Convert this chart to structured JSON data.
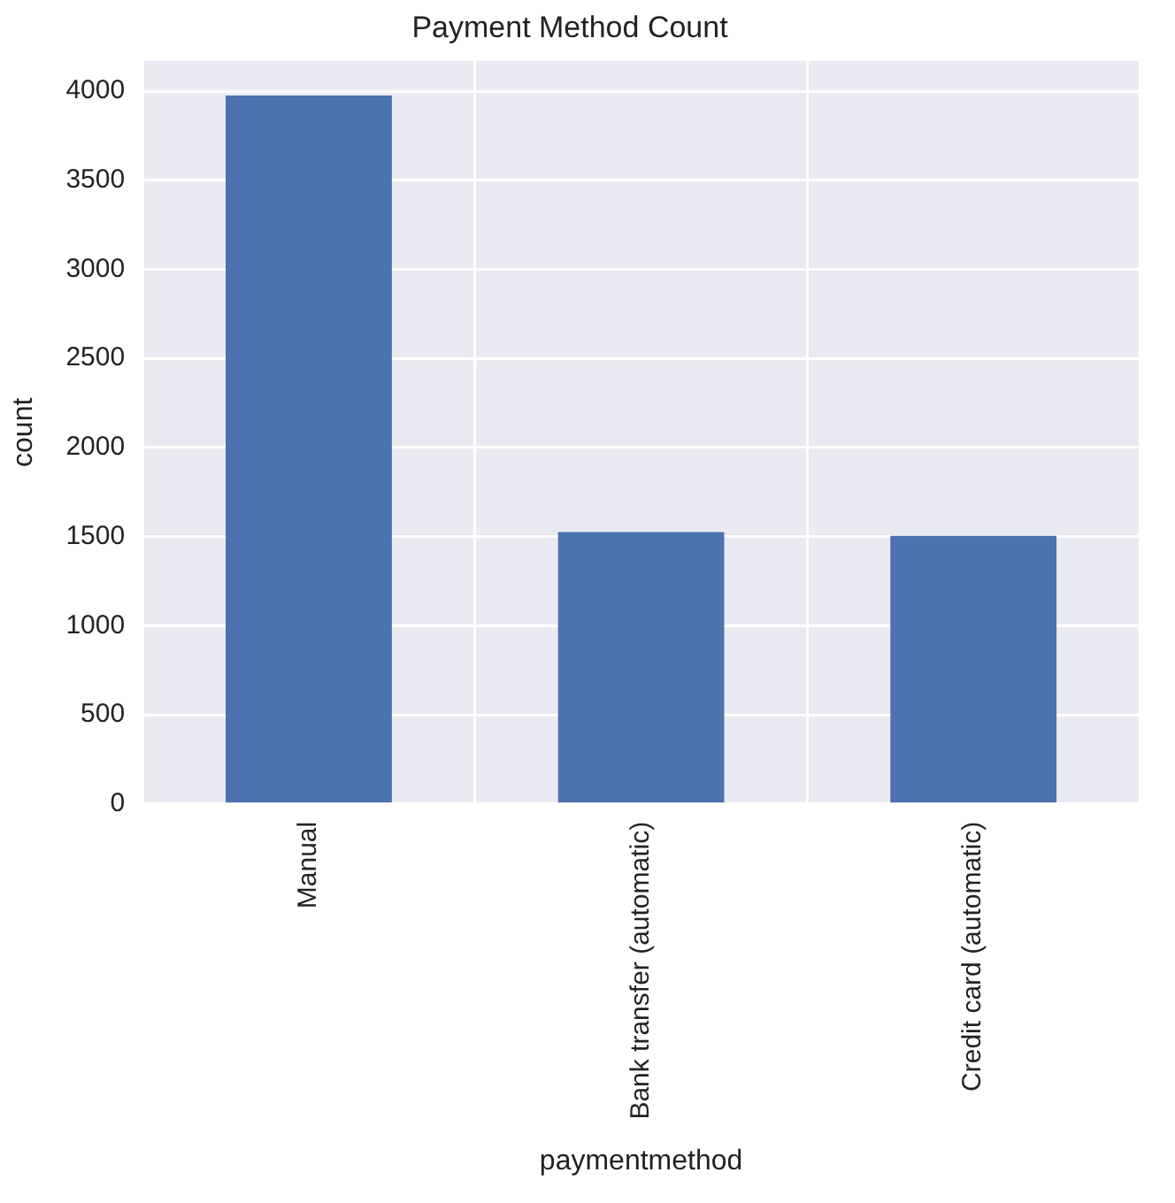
{
  "chart_data": {
    "type": "bar",
    "title": "Payment Method Count",
    "xlabel": "paymentmethod",
    "ylabel": "count",
    "categories": [
      "Manual",
      "Bank transfer (automatic)",
      "Credit card (automatic)"
    ],
    "values": [
      3975,
      1525,
      1505
    ],
    "color": "#4c72b0",
    "ylim": [
      0,
      4170
    ],
    "yticks": [
      0,
      500,
      1000,
      1500,
      2000,
      2500,
      3000,
      3500,
      4000
    ],
    "grid": true,
    "legend": false
  }
}
